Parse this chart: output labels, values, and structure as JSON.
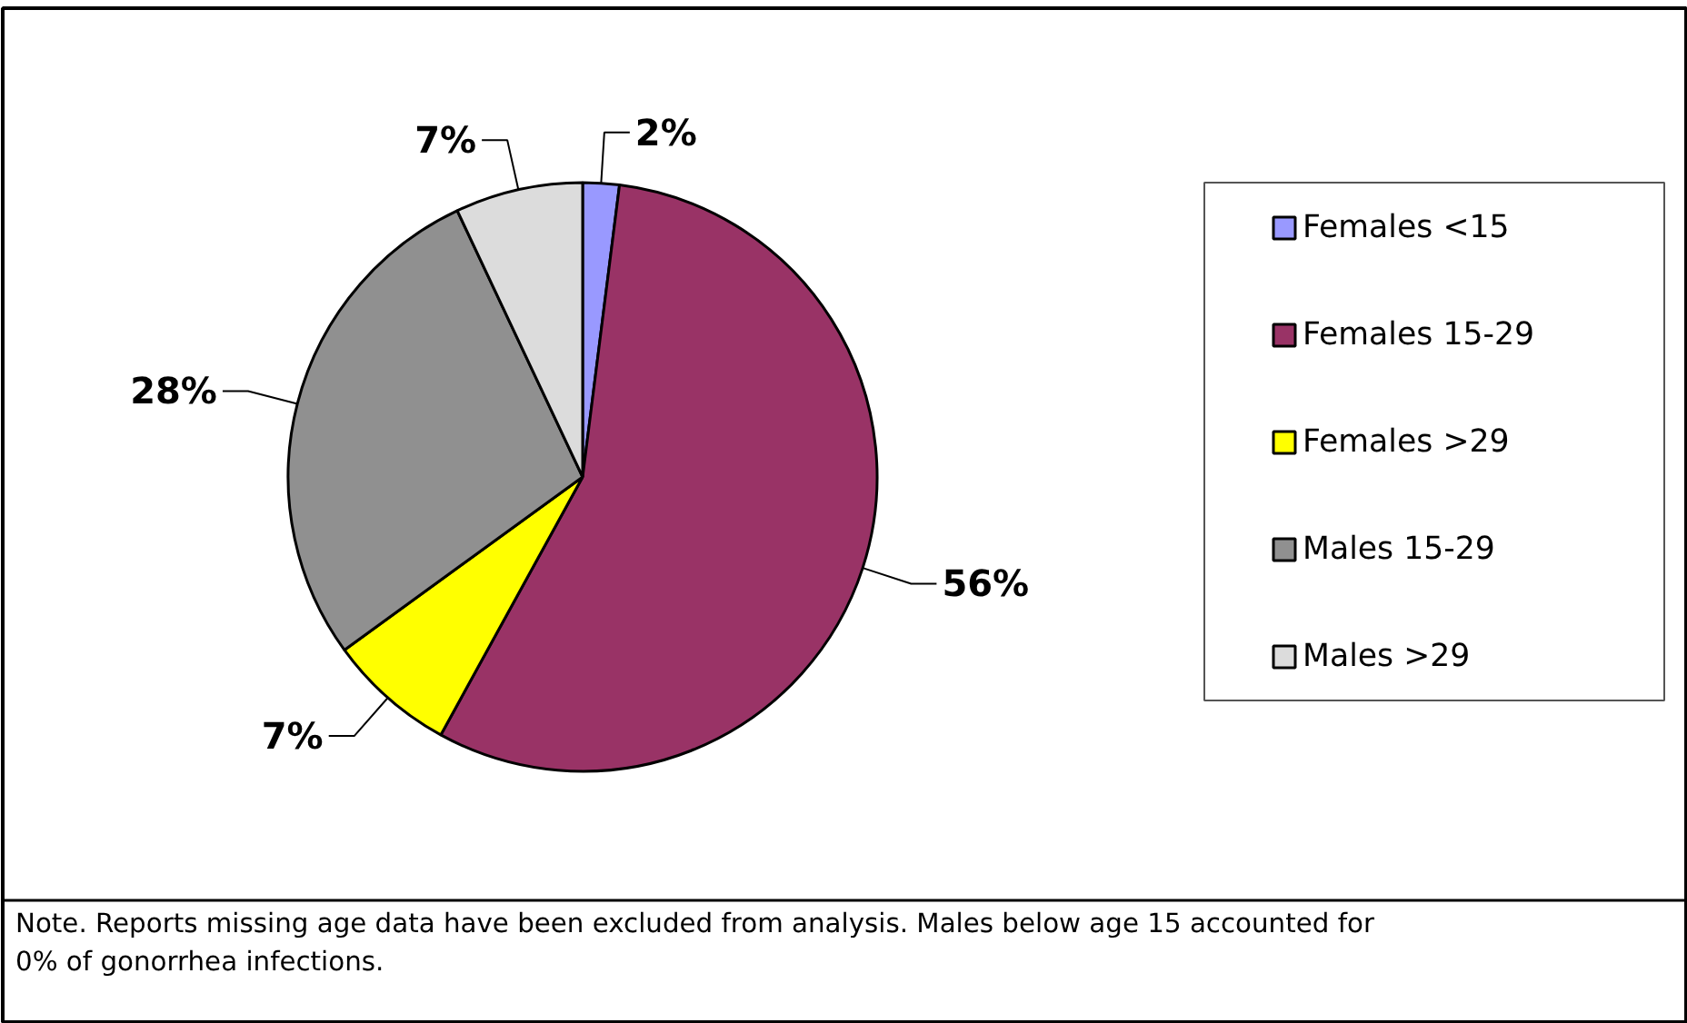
{
  "chart_data": {
    "type": "pie",
    "categories": [
      "Females <15",
      "Females 15-29",
      "Females >29",
      "Males 15-29",
      "Males >29"
    ],
    "values": [
      2,
      56,
      7,
      28,
      7
    ],
    "colors": [
      "#9999ff",
      "#993366",
      "#ffff00",
      "#909090",
      "#dcdcdc"
    ],
    "value_labels": [
      "2%",
      "56%",
      "7%",
      "28%",
      "7%"
    ],
    "legend": "right",
    "annotations": [
      "Note.  Reports missing age data have been excluded from analysis. Males below age 15 accounted for 0% of gonorrhea infections."
    ]
  }
}
